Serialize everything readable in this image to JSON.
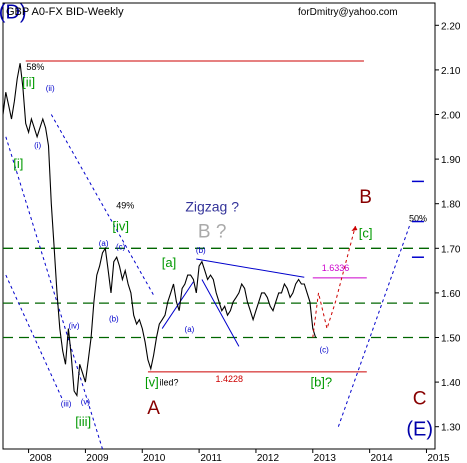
{
  "chart_data": {
    "type": "line",
    "title": "GBP A0-FX BID-Weekly",
    "watermark": "forDmitry@yahoo.com",
    "xlabel": "",
    "ylabel": "",
    "x_ticks": [
      "2008",
      "2009",
      "2010",
      "2011",
      "2012",
      "2013",
      "2014",
      "2015"
    ],
    "y_ticks": [
      "1.30",
      "1.40",
      "1.50",
      "1.60",
      "1.70",
      "1.80",
      "1.90",
      "2.00",
      "2.10",
      "2.20"
    ],
    "xlim": [
      2007.55,
      2015.15
    ],
    "ylim": [
      1.25,
      2.25
    ],
    "series": [
      {
        "color": "#000000",
        "x": [
          2007.55,
          2007.6,
          2007.65,
          2007.7,
          2007.75,
          2007.8,
          2007.85,
          2007.9,
          2007.95,
          2008.0,
          2008.05,
          2008.1,
          2008.15,
          2008.2,
          2008.25,
          2008.3,
          2008.35,
          2008.4,
          2008.45,
          2008.5,
          2008.55,
          2008.6,
          2008.65,
          2008.7,
          2008.75,
          2008.8,
          2008.85,
          2008.9,
          2008.95,
          2009.0,
          2009.05,
          2009.1,
          2009.15,
          2009.2,
          2009.25,
          2009.3,
          2009.35,
          2009.4,
          2009.45,
          2009.5,
          2009.55,
          2009.6,
          2009.65,
          2009.7,
          2009.75,
          2009.8,
          2009.85,
          2009.9,
          2009.95,
          2010.0,
          2010.05,
          2010.1,
          2010.15,
          2010.2,
          2010.25,
          2010.3,
          2010.35,
          2010.4,
          2010.45,
          2010.5,
          2010.55,
          2010.6,
          2010.65,
          2010.7,
          2010.75,
          2010.8,
          2010.85,
          2010.9,
          2010.95,
          2011.0,
          2011.05,
          2011.1,
          2011.15,
          2011.2,
          2011.25,
          2011.3,
          2011.35,
          2011.4,
          2011.45,
          2011.5,
          2011.55,
          2011.6,
          2011.65,
          2011.7,
          2011.75,
          2011.8,
          2011.85,
          2011.9,
          2011.95,
          2012.0,
          2012.05,
          2012.1,
          2012.15,
          2012.2,
          2012.25,
          2012.3,
          2012.35,
          2012.4,
          2012.45,
          2012.5,
          2012.55,
          2012.6,
          2012.65,
          2012.7,
          2012.75,
          2012.8,
          2012.85,
          2012.9,
          2012.95,
          2013.0,
          2013.05
        ],
        "values": [
          2.0,
          2.05,
          2.02,
          1.99,
          2.03,
          2.08,
          2.115,
          2.06,
          1.98,
          1.96,
          1.99,
          1.97,
          1.95,
          1.97,
          1.99,
          1.97,
          1.93,
          1.8,
          1.7,
          1.6,
          1.52,
          1.47,
          1.44,
          1.52,
          1.46,
          1.38,
          1.37,
          1.44,
          1.42,
          1.4,
          1.45,
          1.5,
          1.58,
          1.64,
          1.66,
          1.69,
          1.7,
          1.65,
          1.6,
          1.67,
          1.68,
          1.66,
          1.63,
          1.65,
          1.62,
          1.6,
          1.55,
          1.53,
          1.54,
          1.52,
          1.49,
          1.45,
          1.43,
          1.46,
          1.5,
          1.53,
          1.54,
          1.55,
          1.58,
          1.6,
          1.62,
          1.58,
          1.56,
          1.61,
          1.62,
          1.64,
          1.64,
          1.63,
          1.6,
          1.66,
          1.67,
          1.65,
          1.63,
          1.64,
          1.63,
          1.6,
          1.58,
          1.56,
          1.57,
          1.55,
          1.56,
          1.58,
          1.59,
          1.6,
          1.62,
          1.61,
          1.58,
          1.56,
          1.54,
          1.56,
          1.58,
          1.6,
          1.6,
          1.59,
          1.57,
          1.56,
          1.58,
          1.6,
          1.6,
          1.62,
          1.61,
          1.59,
          1.6,
          1.62,
          1.63,
          1.62,
          1.62,
          1.6,
          1.58,
          1.52,
          1.5
        ]
      }
    ],
    "horizontal_lines": [
      {
        "y": 2.12,
        "x_start": 2007.95,
        "x_end": 2013.9,
        "color": "#cc0000",
        "style": "solid"
      },
      {
        "y": 1.7,
        "x_start": 2007.55,
        "x_end": 2015.15,
        "color": "#006600",
        "style": "dashed"
      },
      {
        "y": 1.577,
        "x_start": 2007.55,
        "x_end": 2015.15,
        "color": "#006600",
        "style": "dashed"
      },
      {
        "y": 1.5,
        "x_start": 2007.55,
        "x_end": 2015.15,
        "color": "#006600",
        "style": "dashed"
      },
      {
        "y": 1.6336,
        "x_start": 2013.0,
        "x_end": 2013.95,
        "color": "#cc00cc",
        "style": "solid"
      },
      {
        "y": 1.4228,
        "x_start": 2010.1,
        "x_end": 2013.95,
        "color": "#cc0000",
        "style": "solid"
      }
    ],
    "trend_lines": [
      {
        "x1": 2007.6,
        "y1": 1.95,
        "x2": 2009.3,
        "y2": 1.25,
        "color": "#0000cc",
        "style": "dashed"
      },
      {
        "x1": 2008.4,
        "y1": 2.0,
        "x2": 2010.2,
        "y2": 1.595,
        "color": "#0000cc",
        "style": "dashed"
      },
      {
        "x1": 2007.6,
        "y1": 1.64,
        "x2": 2008.6,
        "y2": 1.36,
        "color": "#0000cc",
        "style": "dashed"
      },
      {
        "x1": 2010.95,
        "y1": 1.676,
        "x2": 2012.85,
        "y2": 1.635,
        "color": "#0000cc",
        "style": "solid"
      },
      {
        "x1": 2010.35,
        "y1": 1.52,
        "x2": 2010.9,
        "y2": 1.625,
        "color": "#0000cc",
        "style": "solid"
      },
      {
        "x1": 2011.05,
        "y1": 1.63,
        "x2": 2011.7,
        "y2": 1.48,
        "color": "#0000cc",
        "style": "solid"
      },
      {
        "x1": 2013.45,
        "y1": 1.3,
        "x2": 2014.7,
        "y2": 1.75,
        "color": "#0000cc",
        "style": "dashed"
      }
    ],
    "projection_path": {
      "x": [
        2013.0,
        2013.1,
        2013.25,
        2013.4,
        2013.75
      ],
      "y": [
        1.5,
        1.6,
        1.52,
        1.58,
        1.75
      ],
      "color": "#cc0000",
      "style": "dashed"
    },
    "right_ticks": [
      {
        "y": 1.85,
        "color": "#0000cc"
      },
      {
        "y": 1.76,
        "color": "#0000cc"
      },
      {
        "y": 1.68,
        "color": "#0000cc"
      }
    ],
    "annotations": [
      {
        "text": "(D)",
        "x": 2007.72,
        "y": 2.215,
        "color": "#0000aa",
        "size": 20,
        "weight": "normal"
      },
      {
        "text": "58%",
        "x": 2008.12,
        "y": 2.1,
        "color": "#000000",
        "size": 9,
        "weight": "normal"
      },
      {
        "text": "[ii]",
        "x": 2008.0,
        "y": 2.063,
        "color": "#009900",
        "size": 13,
        "weight": "normal"
      },
      {
        "text": "(ii)",
        "x": 2008.38,
        "y": 2.053,
        "color": "#0000cc",
        "size": 8,
        "weight": "normal"
      },
      {
        "text": "(i)",
        "x": 2008.16,
        "y": 1.925,
        "color": "#0000cc",
        "size": 8,
        "weight": "normal"
      },
      {
        "text": "[i]",
        "x": 2007.82,
        "y": 1.88,
        "color": "#009900",
        "size": 13,
        "weight": "normal"
      },
      {
        "text": "49%",
        "x": 2009.7,
        "y": 1.789,
        "color": "#000000",
        "size": 9,
        "weight": "normal"
      },
      {
        "text": "[iv]",
        "x": 2009.62,
        "y": 1.74,
        "color": "#009900",
        "size": 13,
        "weight": "normal"
      },
      {
        "text": "(a)",
        "x": 2009.32,
        "y": 1.705,
        "color": "#0000cc",
        "size": 8,
        "weight": "normal"
      },
      {
        "text": "(c)",
        "x": 2009.62,
        "y": 1.697,
        "color": "#0000cc",
        "size": 8,
        "weight": "normal"
      },
      {
        "text": "(b)",
        "x": 2009.5,
        "y": 1.536,
        "color": "#0000cc",
        "size": 8,
        "weight": "normal"
      },
      {
        "text": "(iv)",
        "x": 2008.8,
        "y": 1.52,
        "color": "#0000cc",
        "size": 8,
        "weight": "normal"
      },
      {
        "text": "(iii)",
        "x": 2008.66,
        "y": 1.345,
        "color": "#0000cc",
        "size": 8,
        "weight": "normal"
      },
      {
        "text": "(v)",
        "x": 2009.0,
        "y": 1.35,
        "color": "#0000cc",
        "size": 8,
        "weight": "normal"
      },
      {
        "text": "[iii]",
        "x": 2008.96,
        "y": 1.302,
        "color": "#009900",
        "size": 13,
        "weight": "normal"
      },
      {
        "text": "Zigzag ?",
        "x": 2011.23,
        "y": 1.783,
        "color": "#333399",
        "size": 14,
        "weight": "normal"
      },
      {
        "text": "B ?",
        "x": 2011.23,
        "y": 1.724,
        "color": "#aaaaaa",
        "size": 19,
        "weight": "normal"
      },
      {
        "text": "(b)",
        "x": 2011.03,
        "y": 1.69,
        "color": "#0000cc",
        "size": 8,
        "weight": "normal"
      },
      {
        "text": "[a]",
        "x": 2010.47,
        "y": 1.658,
        "color": "#009900",
        "size": 13,
        "weight": "normal"
      },
      {
        "text": "(a)",
        "x": 2010.83,
        "y": 1.512,
        "color": "#0000cc",
        "size": 8,
        "weight": "normal"
      },
      {
        "text": "[v]",
        "x": 2010.17,
        "y": 1.39,
        "color": "#009900",
        "size": 13,
        "weight": "normal"
      },
      {
        "text": "iled?",
        "x": 2010.47,
        "y": 1.392,
        "color": "#000000",
        "size": 9,
        "weight": "normal"
      },
      {
        "text": "A",
        "x": 2010.2,
        "y": 1.329,
        "color": "#880000",
        "size": 19,
        "weight": "normal"
      },
      {
        "text": "1.4228",
        "x": 2011.53,
        "y": 1.4,
        "color": "#cc0000",
        "size": 9,
        "weight": "normal"
      },
      {
        "text": "1.6336",
        "x": 2013.4,
        "y": 1.649,
        "color": "#cc00cc",
        "size": 9,
        "weight": "normal"
      },
      {
        "text": "(c)",
        "x": 2013.2,
        "y": 1.466,
        "color": "#0000cc",
        "size": 8,
        "weight": "normal"
      },
      {
        "text": "[b]?",
        "x": 2013.15,
        "y": 1.39,
        "color": "#009900",
        "size": 13,
        "weight": "normal"
      },
      {
        "text": "B",
        "x": 2013.93,
        "y": 1.802,
        "color": "#880000",
        "size": 19,
        "weight": "normal"
      },
      {
        "text": "[c]",
        "x": 2013.93,
        "y": 1.724,
        "color": "#009900",
        "size": 13,
        "weight": "normal"
      },
      {
        "text": "50%",
        "x": 2014.85,
        "y": 1.76,
        "color": "#000000",
        "size": 9,
        "weight": "normal"
      },
      {
        "text": "C",
        "x": 2014.88,
        "y": 1.35,
        "color": "#880000",
        "size": 19,
        "weight": "normal"
      },
      {
        "text": "(E)",
        "x": 2014.88,
        "y": 1.28,
        "color": "#0000aa",
        "size": 20,
        "weight": "normal"
      }
    ]
  }
}
